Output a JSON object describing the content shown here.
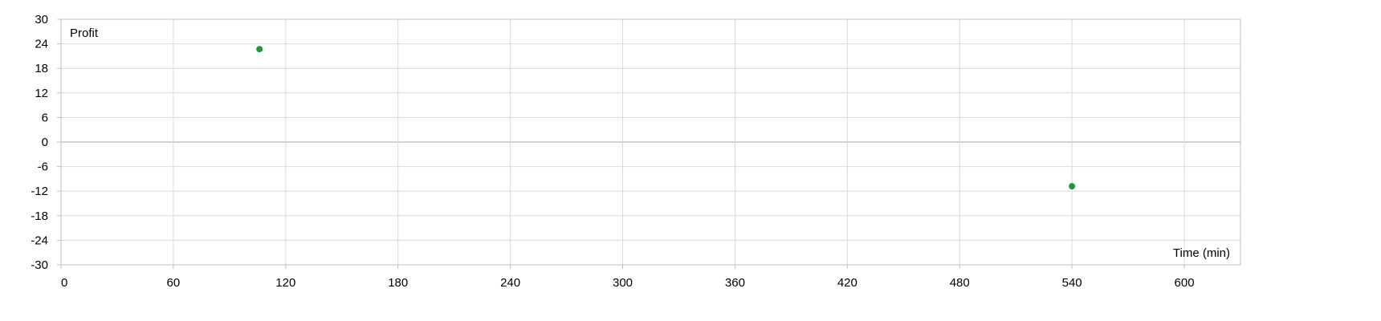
{
  "chart_data": {
    "type": "scatter",
    "title": "",
    "xlabel": "Time (min)",
    "ylabel": "Profit",
    "xlim": [
      0,
      630
    ],
    "ylim": [
      -30,
      30
    ],
    "x_ticks": [
      0,
      60,
      120,
      180,
      240,
      300,
      360,
      420,
      480,
      540,
      600
    ],
    "y_ticks": [
      30,
      24,
      18,
      12,
      6,
      0,
      -6,
      -12,
      -18,
      -24,
      -30
    ],
    "grid": true,
    "series": [
      {
        "points": [
          {
            "x": 106,
            "y": 22.7
          },
          {
            "x": 540,
            "y": -10.8
          }
        ],
        "color": "#1a9a3c"
      }
    ],
    "colors": {
      "gridline": "#d9d9d9",
      "zero_line": "#a6a6a6",
      "frame": "#bfbfbf",
      "marker": "#1a9a3c"
    }
  }
}
